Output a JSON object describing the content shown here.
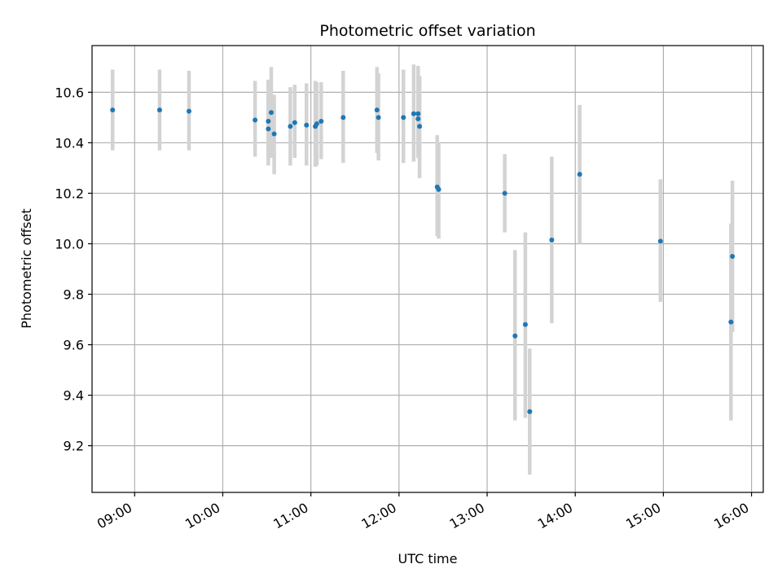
{
  "chart_data": {
    "type": "scatter",
    "title": "Photometric offset variation",
    "xlabel": "UTC time",
    "ylabel": "Photometric offset",
    "xlim": [
      "08:31",
      "16:08"
    ],
    "ylim": [
      9.015,
      10.785
    ],
    "x_ticks": [
      "09:00",
      "10:00",
      "11:00",
      "12:00",
      "13:00",
      "14:00",
      "15:00",
      "16:00"
    ],
    "y_ticks": [
      "9.2",
      "9.4",
      "9.6",
      "9.8",
      "10.0",
      "10.2",
      "10.4",
      "10.6"
    ],
    "grid": true,
    "colors": {
      "marker": "#1f77b4",
      "errorbar": "#d3d3d3",
      "grid": "#b0b0b0"
    },
    "points": [
      {
        "x": "08:45",
        "y": 10.53,
        "lo": 10.37,
        "hi": 10.69
      },
      {
        "x": "09:17",
        "y": 10.53,
        "lo": 10.37,
        "hi": 10.69
      },
      {
        "x": "09:37",
        "y": 10.525,
        "lo": 10.37,
        "hi": 10.685
      },
      {
        "x": "10:22",
        "y": 10.49,
        "lo": 10.345,
        "hi": 10.645
      },
      {
        "x": "10:31",
        "y": 10.455,
        "lo": 10.31,
        "hi": 10.65
      },
      {
        "x": "10:31",
        "y": 10.485,
        "lo": 10.33,
        "hi": 10.64
      },
      {
        "x": "10:33",
        "y": 10.52,
        "lo": 10.34,
        "hi": 10.7
      },
      {
        "x": "10:35",
        "y": 10.435,
        "lo": 10.275,
        "hi": 10.59
      },
      {
        "x": "10:46",
        "y": 10.465,
        "lo": 10.31,
        "hi": 10.62
      },
      {
        "x": "10:49",
        "y": 10.48,
        "lo": 10.34,
        "hi": 10.63
      },
      {
        "x": "10:57",
        "y": 10.47,
        "lo": 10.31,
        "hi": 10.635
      },
      {
        "x": "11:03",
        "y": 10.465,
        "lo": 10.305,
        "hi": 10.645
      },
      {
        "x": "11:04",
        "y": 10.475,
        "lo": 10.31,
        "hi": 10.64
      },
      {
        "x": "11:07",
        "y": 10.485,
        "lo": 10.335,
        "hi": 10.64
      },
      {
        "x": "11:22",
        "y": 10.5,
        "lo": 10.32,
        "hi": 10.685
      },
      {
        "x": "11:45",
        "y": 10.53,
        "lo": 10.36,
        "hi": 10.7
      },
      {
        "x": "11:46",
        "y": 10.5,
        "lo": 10.33,
        "hi": 10.675
      },
      {
        "x": "12:03",
        "y": 10.5,
        "lo": 10.32,
        "hi": 10.69
      },
      {
        "x": "12:10",
        "y": 10.515,
        "lo": 10.325,
        "hi": 10.71
      },
      {
        "x": "12:13",
        "y": 10.515,
        "lo": 10.355,
        "hi": 10.705
      },
      {
        "x": "12:13",
        "y": 10.495,
        "lo": 10.34,
        "hi": 10.66
      },
      {
        "x": "12:14",
        "y": 10.465,
        "lo": 10.26,
        "hi": 10.665
      },
      {
        "x": "12:26",
        "y": 10.225,
        "lo": 10.03,
        "hi": 10.43
      },
      {
        "x": "12:27",
        "y": 10.215,
        "lo": 10.02,
        "hi": 10.4
      },
      {
        "x": "13:12",
        "y": 10.2,
        "lo": 10.045,
        "hi": 10.355
      },
      {
        "x": "13:19",
        "y": 9.635,
        "lo": 9.3,
        "hi": 9.975
      },
      {
        "x": "13:26",
        "y": 9.68,
        "lo": 9.31,
        "hi": 10.045
      },
      {
        "x": "13:29",
        "y": 9.335,
        "lo": 9.085,
        "hi": 9.585
      },
      {
        "x": "13:44",
        "y": 10.015,
        "lo": 9.685,
        "hi": 10.345
      },
      {
        "x": "14:03",
        "y": 10.275,
        "lo": 10.0,
        "hi": 10.55
      },
      {
        "x": "14:58",
        "y": 10.01,
        "lo": 9.77,
        "hi": 10.255
      },
      {
        "x": "15:46",
        "y": 9.69,
        "lo": 9.3,
        "hi": 10.08
      },
      {
        "x": "15:47",
        "y": 9.95,
        "lo": 9.65,
        "hi": 10.25
      }
    ]
  }
}
